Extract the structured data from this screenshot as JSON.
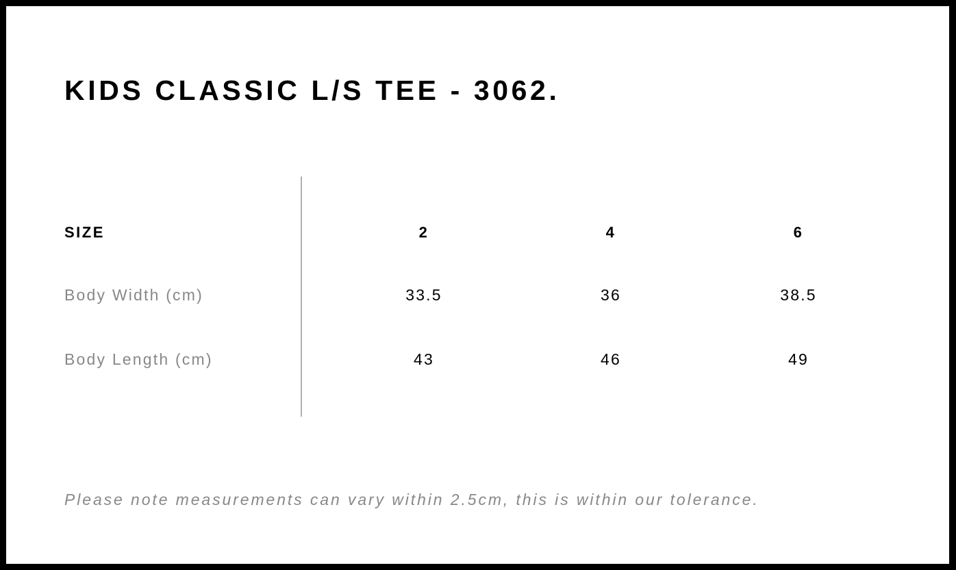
{
  "title": "KIDS CLASSIC L/S TEE - 3062.",
  "table": {
    "header": {
      "label": "SIZE",
      "cells": [
        "2",
        "4",
        "6"
      ]
    },
    "rows": [
      {
        "label": "Body Width (cm)",
        "cells": [
          "33.5",
          "36",
          "38.5"
        ]
      },
      {
        "label": "Body Length (cm)",
        "cells": [
          "43",
          "46",
          "49"
        ]
      }
    ]
  },
  "note": "Please note measurements can vary within 2.5cm, this is within our tolerance."
}
